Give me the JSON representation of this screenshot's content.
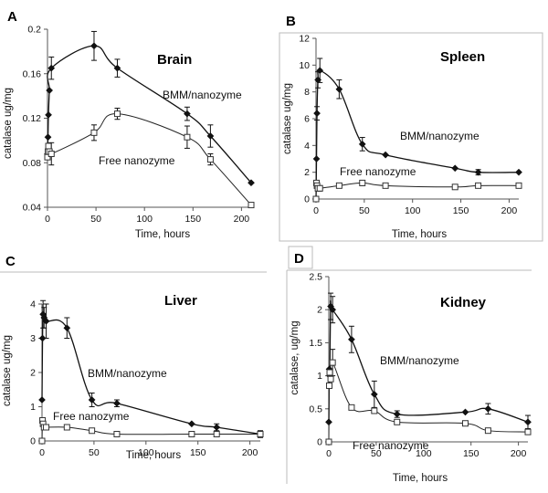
{
  "chart_data": [
    {
      "type": "line",
      "panel_letter": "A",
      "title": "Brain",
      "xlabel": "Time, hours",
      "ylabel": "catalase ug/mg",
      "xlim": [
        0,
        210
      ],
      "ylim": [
        0.04,
        0.2
      ],
      "xticks": [
        0,
        50,
        100,
        150,
        200
      ],
      "yticks": [
        0.04,
        0.08,
        0.12,
        0.16,
        0.2
      ],
      "ytick_labels": [
        "0.04",
        "0.08",
        "0.12",
        "0.16",
        "0.2"
      ],
      "series": [
        {
          "name": "BMM/nanozyme",
          "marker": "filled-diamond",
          "x": [
            0,
            0.5,
            1,
            2,
            4,
            48,
            72,
            144,
            168,
            210
          ],
          "y": [
            0.088,
            0.103,
            0.123,
            0.145,
            0.165,
            0.185,
            0.165,
            0.124,
            0.104,
            0.062
          ],
          "err": [
            0,
            0,
            0,
            0,
            0.01,
            0.013,
            0.008,
            0.006,
            0.01,
            0
          ]
        },
        {
          "name": "Free nanozyme",
          "marker": "open-square",
          "x": [
            0,
            0.5,
            1,
            2,
            4,
            48,
            72,
            144,
            168,
            210
          ],
          "y": [
            0.085,
            0.09,
            0.095,
            0.09,
            0.088,
            0.107,
            0.124,
            0.103,
            0.083,
            0.042
          ],
          "err": [
            0,
            0,
            0,
            0,
            0.01,
            0.007,
            0.005,
            0.01,
            0.005,
            0
          ]
        }
      ]
    },
    {
      "type": "line",
      "panel_letter": "B",
      "title": "Spleen",
      "xlabel": "Time, hours",
      "ylabel": "catalase ug/mg",
      "xlim": [
        0,
        210
      ],
      "ylim": [
        0,
        12
      ],
      "xticks": [
        0,
        50,
        100,
        150,
        200
      ],
      "yticks": [
        0,
        2,
        4,
        6,
        8,
        10,
        12
      ],
      "ytick_labels": [
        "0",
        "2",
        "4",
        "6",
        "8",
        "10",
        "12"
      ],
      "series": [
        {
          "name": "BMM/nanozyme",
          "marker": "filled-diamond",
          "x": [
            0,
            0.5,
            1,
            2,
            4,
            24,
            48,
            72,
            144,
            168,
            210
          ],
          "y": [
            0,
            3.0,
            6.4,
            8.9,
            9.6,
            8.2,
            4.1,
            3.3,
            2.3,
            2.0,
            2.0
          ],
          "err": [
            0,
            0,
            0.5,
            0.6,
            0.9,
            0.7,
            0.5,
            0,
            0,
            0.2,
            0
          ]
        },
        {
          "name": "Free nanozyme",
          "marker": "open-square",
          "x": [
            0,
            0.5,
            1,
            2,
            4,
            24,
            48,
            72,
            144,
            168,
            210
          ],
          "y": [
            0,
            1.2,
            1.0,
            0.8,
            0.8,
            1.0,
            1.2,
            1.0,
            0.9,
            1.0,
            1.0
          ],
          "err": [
            0,
            0,
            0,
            0,
            0.2,
            0,
            0.2,
            0,
            0,
            0,
            0
          ]
        }
      ]
    },
    {
      "type": "line",
      "panel_letter": "C",
      "title": "Liver",
      "xlabel": "Time, hours",
      "ylabel": "catalase ug/mg",
      "xlim": [
        0,
        210
      ],
      "ylim": [
        0,
        4
      ],
      "xticks": [
        0,
        50,
        100,
        150,
        200
      ],
      "yticks": [
        0,
        1,
        2,
        3,
        4
      ],
      "ytick_labels": [
        "0",
        "1",
        "2",
        "3",
        "4"
      ],
      "series": [
        {
          "name": "BMM/nanozyme",
          "marker": "filled-diamond",
          "x": [
            0,
            0.5,
            1,
            2,
            4,
            24,
            48,
            72,
            144,
            168,
            210
          ],
          "y": [
            1.2,
            3.0,
            3.7,
            3.6,
            3.5,
            3.3,
            1.2,
            1.1,
            0.5,
            0.4,
            0.2
          ],
          "err": [
            0,
            0,
            0.4,
            0.3,
            0.5,
            0.3,
            0.2,
            0.1,
            0,
            0.1,
            0.1
          ]
        },
        {
          "name": "Free nanozyme",
          "marker": "open-square",
          "x": [
            0,
            0.5,
            1,
            2,
            4,
            24,
            48,
            72,
            144,
            168,
            210
          ],
          "y": [
            0,
            0.6,
            0.5,
            0.4,
            0.4,
            0.4,
            0.3,
            0.2,
            0.2,
            0.2,
            0.2
          ],
          "err": [
            0,
            0,
            0,
            0,
            0.05,
            0,
            0,
            0,
            0,
            0,
            0
          ]
        }
      ]
    },
    {
      "type": "line",
      "panel_letter": "D",
      "title": "Kidney",
      "xlabel": "Time, hours",
      "ylabel": "catalase, ug/mg",
      "xlim": [
        0,
        210
      ],
      "ylim": [
        0,
        2.5
      ],
      "xticks": [
        0,
        50,
        100,
        150,
        200
      ],
      "yticks": [
        0,
        0.5,
        1,
        1.5,
        2,
        2.5
      ],
      "ytick_labels": [
        "0",
        "0.5",
        "1",
        "1.5",
        "2",
        "2.5"
      ],
      "series": [
        {
          "name": "BMM/nanozyme",
          "marker": "filled-diamond",
          "x": [
            0,
            0.5,
            1,
            2,
            4,
            24,
            48,
            72,
            144,
            168,
            210
          ],
          "y": [
            0.3,
            1.1,
            1.0,
            2.05,
            2.0,
            1.55,
            0.72,
            0.42,
            0.45,
            0.5,
            0.3
          ],
          "err": [
            0,
            0,
            0,
            0.2,
            0.2,
            0.2,
            0.2,
            0.05,
            0,
            0.08,
            0.1
          ]
        },
        {
          "name": "Free nanozyme",
          "marker": "open-square",
          "x": [
            0,
            0.5,
            1,
            2,
            4,
            24,
            48,
            72,
            144,
            168,
            210
          ],
          "y": [
            0,
            0.85,
            1.05,
            0.95,
            1.2,
            0.52,
            0.47,
            0.3,
            0.28,
            0.17,
            0.15
          ],
          "err": [
            0,
            0,
            0,
            0,
            0.2,
            0,
            0,
            0,
            0,
            0,
            0
          ]
        }
      ]
    }
  ]
}
